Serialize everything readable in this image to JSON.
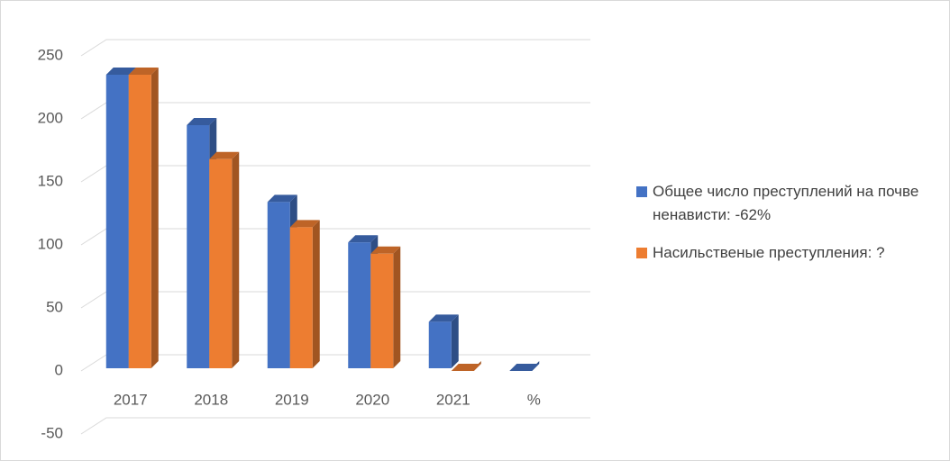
{
  "chart_data": {
    "type": "bar3d",
    "categories": [
      "2017",
      "2018",
      "2019",
      "2020",
      "2021",
      "%"
    ],
    "series": [
      {
        "name": "Общее число преступлений на почве ненависти: -62%",
        "color": "#4472c4",
        "values": [
          235,
          195,
          134,
          102,
          39,
          0
        ]
      },
      {
        "name": "Насильственые преступления: ?",
        "color": "#ed7d31",
        "values": [
          235,
          168,
          114,
          93,
          0,
          null
        ]
      }
    ],
    "ylim": [
      -50,
      250
    ],
    "yticks": [
      -50,
      0,
      50,
      100,
      150,
      200,
      250
    ],
    "grid": true,
    "legend": "right"
  }
}
